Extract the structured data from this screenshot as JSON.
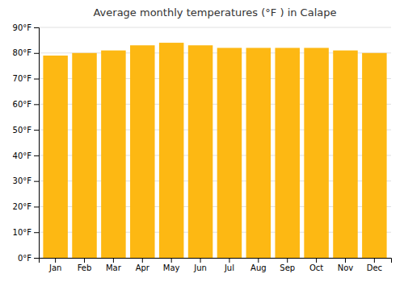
{
  "chart_data": {
    "type": "bar",
    "title": "Average monthly temperatures (°F ) in Calape",
    "categories": [
      "Jan",
      "Feb",
      "Mar",
      "Apr",
      "May",
      "Jun",
      "Jul",
      "Aug",
      "Sep",
      "Oct",
      "Nov",
      "Dec"
    ],
    "values": [
      79,
      80,
      81,
      83,
      84,
      83,
      82,
      82,
      82,
      82,
      81,
      80
    ],
    "color": "#FDB813",
    "ylim": [
      0,
      90
    ],
    "yticks": [
      {
        "value": 0,
        "label": "0°F"
      },
      {
        "value": 10,
        "label": "10°F"
      },
      {
        "value": 20,
        "label": "20°F"
      },
      {
        "value": 30,
        "label": "30°F"
      },
      {
        "value": 40,
        "label": "40°F"
      },
      {
        "value": 50,
        "label": "50°F"
      },
      {
        "value": 60,
        "label": "60°F"
      },
      {
        "value": 70,
        "label": "70°F"
      },
      {
        "value": 80,
        "label": "80°F"
      },
      {
        "value": 90,
        "label": "90°F"
      }
    ],
    "grid": true
  }
}
